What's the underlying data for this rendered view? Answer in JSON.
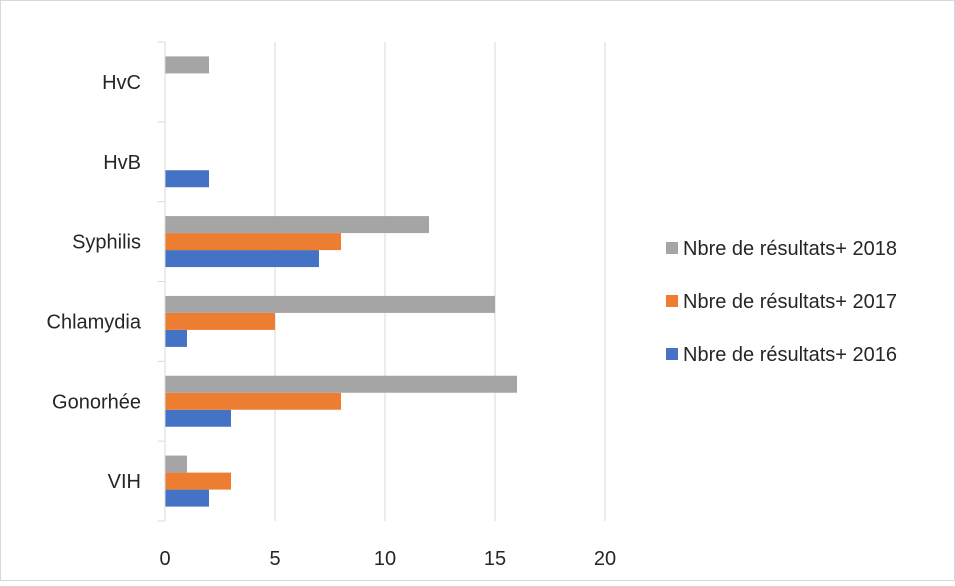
{
  "chart_data": {
    "type": "bar",
    "orientation": "horizontal",
    "categories": [
      "VIH",
      "Gonorhée",
      "Chlamydia",
      "Syphilis",
      "HvB",
      "HvC"
    ],
    "series": [
      {
        "name": "Nbre de résultats+ 2016",
        "color": "#4472C4",
        "values": [
          2,
          3,
          1,
          7,
          2,
          0
        ]
      },
      {
        "name": "Nbre de résultats+ 2017",
        "color": "#ED7D31",
        "values": [
          3,
          8,
          5,
          8,
          0,
          0
        ]
      },
      {
        "name": "Nbre de résultats+ 2018",
        "color": "#A5A5A5",
        "values": [
          1,
          16,
          15,
          12,
          0,
          2
        ]
      }
    ],
    "xlim": [
      0,
      20
    ],
    "xticks": [
      "0",
      "5",
      "10",
      "15",
      "20"
    ],
    "grid": "vertical",
    "legend_position": "right",
    "legend_order": [
      "Nbre de résultats+ 2018",
      "Nbre de résultats+ 2017",
      "Nbre de résultats+ 2016"
    ]
  }
}
